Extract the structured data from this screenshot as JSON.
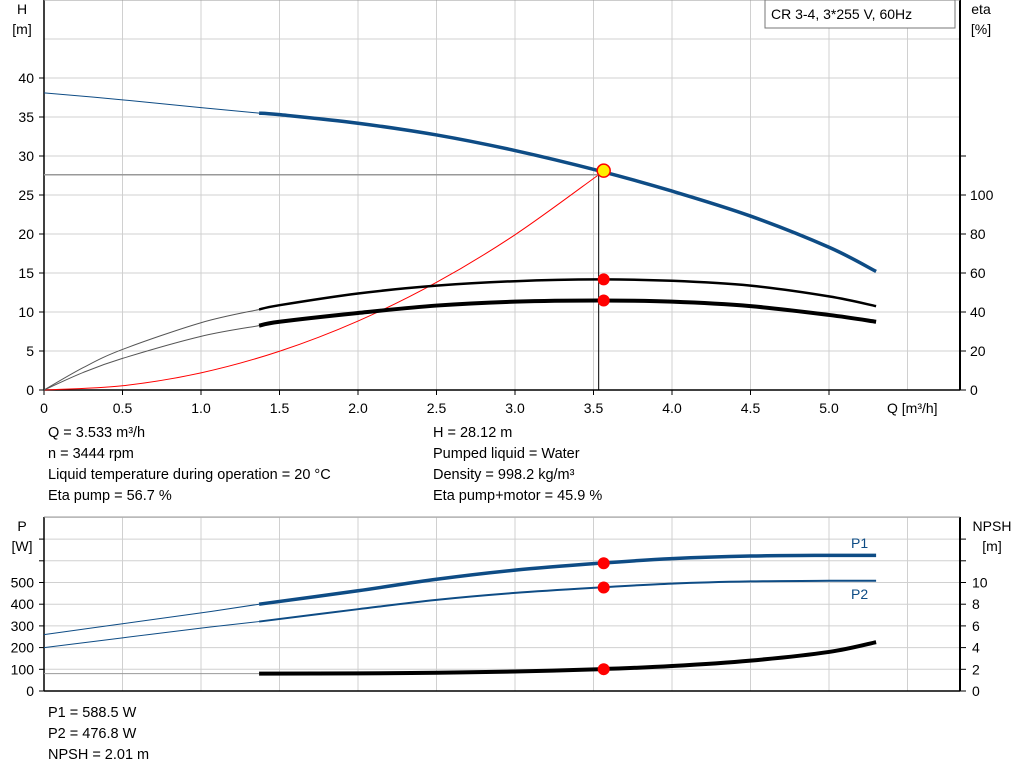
{
  "chart_data": [
    {
      "type": "line",
      "title_box": "CR 3-4, 3*255 V, 60Hz",
      "xlabel": "Q [m³/h]",
      "ylabel_left": [
        "H",
        "[m]"
      ],
      "ylabel_right": [
        "eta",
        "[%]"
      ],
      "xlim": [
        0,
        5.8
      ],
      "ylim_left": [
        0,
        50
      ],
      "ylim_right": [
        0,
        200
      ],
      "x_ticks": [
        "0",
        "0.5",
        "1.0",
        "1.5",
        "2.0",
        "2.5",
        "3.0",
        "3.5",
        "4.0",
        "4.5",
        "5.0"
      ],
      "y_ticks_left": [
        "0",
        "5",
        "10",
        "15",
        "20",
        "25",
        "30",
        "35",
        "40"
      ],
      "y_ticks_right": [
        "0",
        "20",
        "40",
        "60",
        "80",
        "100"
      ],
      "grid": true,
      "series": [
        {
          "key": "H",
          "axis": "left",
          "color": "#0e4c85",
          "x": [
            0,
            0.5,
            1.0,
            1.37,
            1.5,
            2.0,
            2.5,
            3.0,
            3.533,
            4.0,
            4.5,
            5.0,
            5.3
          ],
          "y": [
            38.1,
            37.2,
            36.2,
            35.5,
            35.3,
            34.2,
            32.7,
            30.7,
            28.12,
            25.5,
            22.3,
            18.3,
            15.2
          ]
        },
        {
          "key": "eta_pump",
          "axis": "right",
          "color": "#000000",
          "x": [
            0,
            0.25,
            0.5,
            1.0,
            1.37,
            1.5,
            2.0,
            2.5,
            3.0,
            3.533,
            4.0,
            4.5,
            5.0,
            5.3
          ],
          "y": [
            0,
            11.5,
            20.8,
            34.5,
            41.3,
            43.5,
            49.5,
            53.5,
            55.8,
            56.7,
            56.0,
            53.5,
            48.0,
            43.0
          ]
        },
        {
          "key": "eta_pump_motor",
          "axis": "right",
          "color": "#000000",
          "x": [
            0,
            0.25,
            0.5,
            1.0,
            1.37,
            1.5,
            2.0,
            2.5,
            3.0,
            3.533,
            4.0,
            4.5,
            5.0,
            5.3
          ],
          "y": [
            0,
            9.0,
            16.2,
            27.5,
            33.0,
            35.0,
            39.5,
            43.3,
            45.3,
            45.9,
            45.3,
            43.0,
            38.5,
            35.0
          ]
        },
        {
          "key": "system_curve",
          "axis": "left",
          "color": "#ff0000",
          "x": [
            0,
            0.5,
            1.0,
            1.5,
            2.0,
            2.5,
            3.0,
            3.533
          ],
          "y": [
            0,
            0.55,
            2.2,
            4.97,
            8.84,
            13.8,
            19.9,
            27.6
          ]
        }
      ],
      "duty_point": {
        "Q": 3.533,
        "H": 28.12,
        "color": "#ffee00"
      },
      "markers": [
        {
          "series": "eta_pump",
          "x": 3.533,
          "y": 56.7
        },
        {
          "series": "eta_pump_motor",
          "x": 3.533,
          "y": 45.9
        }
      ]
    },
    {
      "type": "line",
      "ylabel_left": [
        "P",
        "[W]"
      ],
      "ylabel_right": [
        "NPSH",
        "[m]"
      ],
      "xlim": [
        0,
        5.8
      ],
      "ylim_left": [
        0,
        800
      ],
      "ylim_right": [
        0,
        16
      ],
      "y_ticks_left": [
        "0",
        "100",
        "200",
        "300",
        "400",
        "500"
      ],
      "y_ticks_right": [
        "0",
        "2",
        "4",
        "6",
        "8",
        "10"
      ],
      "grid": true,
      "series": [
        {
          "key": "P1",
          "name": "P1",
          "axis": "left",
          "color": "#0e4c85",
          "x": [
            0,
            0.5,
            1.0,
            1.37,
            2.0,
            2.5,
            3.0,
            3.533,
            4.0,
            4.5,
            5.0,
            5.3
          ],
          "y": [
            260,
            310,
            360,
            400,
            462,
            515,
            557,
            588.5,
            610,
            622,
            625,
            625
          ]
        },
        {
          "key": "P2",
          "name": "P2",
          "axis": "left",
          "color": "#0e4c85",
          "x": [
            0,
            0.5,
            1.0,
            1.37,
            2.0,
            2.5,
            3.0,
            3.533,
            4.0,
            4.5,
            5.0,
            5.3
          ],
          "y": [
            200,
            245,
            290,
            320,
            377,
            420,
            452,
            476.8,
            495,
            505,
            508,
            508
          ]
        },
        {
          "key": "NPSH",
          "axis": "right",
          "color": "#000000",
          "x": [
            0,
            1.37,
            2.0,
            2.5,
            3.0,
            3.533,
            4.0,
            4.5,
            5.0,
            5.3
          ],
          "y": [
            1.6,
            1.6,
            1.62,
            1.68,
            1.8,
            2.01,
            2.3,
            2.8,
            3.6,
            4.5
          ]
        }
      ],
      "markers": [
        {
          "series": "P1",
          "x": 3.533,
          "y": 588.5
        },
        {
          "series": "P2",
          "x": 3.533,
          "y": 476.8
        },
        {
          "series": "NPSH",
          "x": 3.533,
          "y": 2.01
        }
      ]
    }
  ],
  "readout_top": {
    "q": "Q = 3.533 m³/h",
    "n": "n = 3444 rpm",
    "temp": "Liquid temperature during operation = 20 °C",
    "eta_pump": "Eta pump = 56.7 %",
    "h": "H = 28.12 m",
    "liquid": "Pumped liquid = Water",
    "density": "Density = 998.2 kg/m³",
    "eta_total": "Eta pump+motor = 45.9 %"
  },
  "readout_bottom": {
    "p1": "P1 = 588.5 W",
    "p2": "P2 = 476.8 W",
    "npsh": "NPSH = 2.01 m"
  },
  "colors": {
    "curve_blue": "#0e4c85",
    "marker_red": "#ff0000",
    "duty_yellow": "#ffee00",
    "grid": "#d0d0d0"
  }
}
